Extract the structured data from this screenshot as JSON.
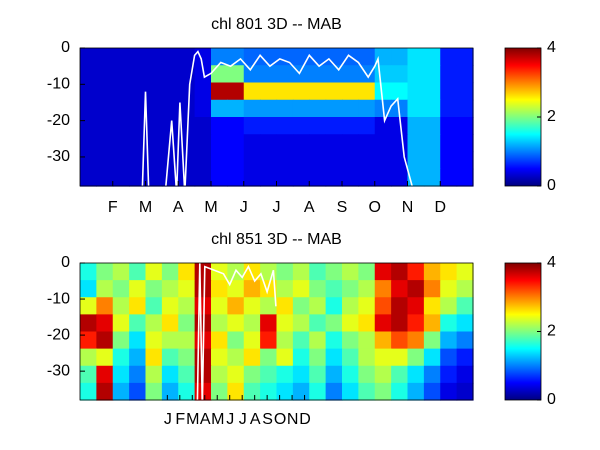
{
  "chart_data": [
    {
      "type": "heatmap",
      "title": "chl  801 3D   -- MAB",
      "colormap": "jet",
      "xlim": [
        0,
        12
      ],
      "xticks": [
        {
          "value": 1,
          "label": "F"
        },
        {
          "value": 2,
          "label": "M"
        },
        {
          "value": 3,
          "label": "A"
        },
        {
          "value": 4,
          "label": "M"
        },
        {
          "value": 5,
          "label": "J"
        },
        {
          "value": 6,
          "label": "J"
        },
        {
          "value": 7,
          "label": "A"
        },
        {
          "value": 8,
          "label": "S"
        },
        {
          "value": 9,
          "label": "O"
        },
        {
          "value": 10,
          "label": "N"
        },
        {
          "value": 11,
          "label": "D"
        }
      ],
      "ylim": [
        -38,
        0
      ],
      "yticks": [
        0,
        -10,
        -20,
        -30
      ],
      "clim": [
        0,
        4
      ],
      "cticks": [
        0,
        2,
        4
      ],
      "z": [
        [
          0.3,
          0.3,
          0.3,
          0.3,
          0.3,
          0.3,
          0.3,
          0.4,
          1.0,
          1.0,
          0.9,
          0.9,
          0.9,
          0.9,
          0.9,
          0.9,
          0.9,
          0.9,
          1.2,
          1.2,
          1.4,
          1.4,
          0.6,
          0.6
        ],
        [
          0.3,
          0.3,
          0.3,
          0.3,
          0.3,
          0.3,
          0.3,
          0.4,
          2.0,
          2.0,
          1.0,
          1.0,
          1.0,
          1.0,
          1.0,
          1.0,
          1.0,
          1.0,
          1.3,
          1.3,
          1.4,
          1.4,
          0.6,
          0.6
        ],
        [
          0.3,
          0.3,
          0.3,
          0.3,
          0.3,
          0.3,
          0.3,
          0.4,
          3.8,
          3.8,
          2.6,
          2.6,
          2.6,
          2.6,
          2.6,
          2.6,
          2.6,
          2.6,
          1.5,
          1.5,
          1.4,
          1.4,
          0.6,
          0.6
        ],
        [
          0.3,
          0.3,
          0.3,
          0.3,
          0.3,
          0.3,
          0.3,
          0.4,
          1.2,
          1.2,
          1.1,
          1.1,
          1.1,
          1.1,
          1.1,
          1.1,
          1.1,
          1.1,
          1.0,
          1.0,
          1.4,
          1.4,
          0.6,
          0.6
        ],
        [
          0.3,
          0.3,
          0.3,
          0.3,
          0.3,
          0.3,
          0.3,
          0.3,
          0.5,
          0.5,
          0.6,
          0.6,
          0.6,
          0.6,
          0.6,
          0.6,
          0.6,
          0.6,
          0.4,
          0.4,
          1.2,
          1.2,
          0.5,
          0.5
        ],
        [
          0.3,
          0.3,
          0.3,
          0.3,
          0.3,
          0.3,
          0.3,
          0.3,
          0.5,
          0.5,
          0.4,
          0.4,
          0.4,
          0.4,
          0.4,
          0.4,
          0.4,
          0.4,
          0.4,
          0.4,
          1.2,
          1.2,
          0.5,
          0.5
        ],
        [
          0.3,
          0.3,
          0.3,
          0.3,
          0.3,
          0.3,
          0.3,
          0.3,
          0.5,
          0.5,
          0.4,
          0.4,
          0.4,
          0.4,
          0.4,
          0.4,
          0.4,
          0.4,
          0.4,
          0.4,
          1.2,
          1.2,
          0.5,
          0.5
        ],
        [
          0.3,
          0.3,
          0.3,
          0.3,
          0.3,
          0.3,
          0.3,
          0.3,
          0.5,
          0.5,
          0.4,
          0.4,
          0.4,
          0.4,
          0.4,
          0.4,
          0.4,
          0.4,
          0.4,
          0.4,
          1.2,
          1.2,
          0.5,
          0.5
        ]
      ],
      "line": {
        "color": "#ffffff",
        "x": [
          1.9,
          2.0,
          2.1,
          2.25,
          2.4,
          2.6,
          2.8,
          2.95,
          3.05,
          3.2,
          3.35,
          3.5,
          3.6,
          3.7,
          3.8,
          4.0,
          4.3,
          4.6,
          4.9,
          5.2,
          5.5,
          5.8,
          6.1,
          6.4,
          6.7,
          7.0,
          7.3,
          7.6,
          7.9,
          8.2,
          8.5,
          8.8,
          9.0,
          9.1,
          9.3,
          9.5,
          9.7,
          9.9,
          10.2
        ],
        "values": [
          -40,
          -12,
          -40,
          -40,
          -40,
          -40,
          -20,
          -40,
          -15,
          -40,
          -10,
          -2,
          -1,
          -3,
          -8,
          -7,
          -4,
          -5,
          -3,
          -6,
          -2,
          -5,
          -3,
          -4,
          -7,
          -2,
          -5,
          -3,
          -6,
          -2,
          -4,
          -8,
          -5,
          -3,
          -20,
          -16,
          -14,
          -30,
          -40
        ]
      }
    },
    {
      "type": "heatmap",
      "title": "chl  851 3D   -- MAB",
      "colormap": "jet",
      "xlim": [
        0,
        31.5
      ],
      "xticks": [
        {
          "value": 7,
          "label": "J"
        },
        {
          "value": 8,
          "label": "F"
        },
        {
          "value": 9,
          "label": "M"
        },
        {
          "value": 10,
          "label": "A"
        },
        {
          "value": 11,
          "label": "M"
        },
        {
          "value": 12,
          "label": "J"
        },
        {
          "value": 13,
          "label": "J"
        },
        {
          "value": 14,
          "label": "A"
        },
        {
          "value": 15,
          "label": "S"
        },
        {
          "value": 16,
          "label": "O"
        },
        {
          "value": 17,
          "label": "N"
        },
        {
          "value": 18,
          "label": "D"
        }
      ],
      "ylim": [
        -38,
        0
      ],
      "yticks": [
        0,
        -10,
        -20,
        -30
      ],
      "clim": [
        0,
        4
      ],
      "cticks": [
        0,
        2,
        4
      ],
      "z": [
        [
          1.6,
          2.0,
          2.2,
          1.8,
          2.4,
          2.0,
          2.6,
          3.8,
          2.4,
          2.2,
          2.6,
          2.2,
          2.0,
          2.2,
          1.8,
          2.0,
          2.2,
          2.0,
          3.6,
          3.8,
          3.4,
          2.8,
          2.6,
          2.4
        ],
        [
          1.4,
          2.2,
          2.0,
          2.4,
          2.0,
          2.2,
          2.4,
          3.8,
          2.6,
          2.4,
          2.8,
          2.6,
          2.2,
          2.4,
          2.0,
          1.8,
          2.0,
          2.2,
          3.0,
          3.6,
          3.8,
          3.0,
          2.4,
          2.2
        ],
        [
          2.4,
          3.0,
          2.2,
          2.6,
          1.8,
          2.4,
          2.2,
          3.6,
          2.4,
          2.8,
          2.4,
          2.2,
          2.6,
          2.0,
          2.2,
          1.6,
          2.2,
          2.4,
          3.2,
          3.8,
          3.6,
          2.6,
          2.2,
          1.8
        ],
        [
          3.8,
          3.6,
          2.4,
          1.8,
          2.2,
          2.6,
          2.0,
          3.8,
          2.2,
          2.4,
          2.2,
          3.6,
          2.4,
          2.2,
          1.8,
          2.0,
          2.4,
          2.6,
          3.6,
          3.8,
          3.4,
          2.8,
          1.6,
          1.4
        ],
        [
          3.4,
          3.8,
          2.0,
          1.4,
          2.4,
          2.2,
          2.2,
          3.6,
          2.6,
          2.0,
          2.4,
          3.4,
          2.2,
          1.8,
          2.2,
          1.6,
          2.0,
          2.2,
          2.8,
          3.2,
          3.0,
          2.0,
          1.2,
          1.0
        ],
        [
          2.2,
          2.4,
          1.6,
          1.2,
          2.6,
          1.8,
          2.0,
          3.8,
          2.4,
          2.2,
          2.6,
          2.0,
          2.4,
          1.6,
          2.0,
          1.4,
          1.8,
          2.2,
          2.4,
          2.4,
          2.0,
          1.4,
          0.8,
          0.6
        ],
        [
          1.8,
          3.6,
          1.4,
          1.0,
          2.2,
          1.4,
          1.8,
          3.8,
          2.2,
          2.4,
          2.0,
          1.8,
          1.6,
          1.4,
          1.8,
          1.2,
          1.6,
          2.0,
          2.2,
          1.8,
          1.4,
          1.0,
          0.6,
          0.4
        ],
        [
          1.6,
          3.8,
          1.2,
          0.8,
          2.0,
          1.2,
          1.6,
          3.6,
          2.0,
          2.6,
          1.8,
          1.6,
          1.4,
          1.2,
          1.6,
          1.0,
          1.4,
          1.8,
          2.0,
          1.6,
          1.2,
          0.8,
          0.4,
          0.3
        ]
      ],
      "line": {
        "color": "#ffffff",
        "x": [
          9.4,
          9.6,
          9.8,
          10.0,
          11.5,
          12.0,
          12.5,
          13.0,
          13.5,
          14.0,
          14.5,
          15.0,
          15.5,
          15.7
        ],
        "values": [
          -40,
          0,
          -40,
          -1,
          -3,
          -6,
          -2,
          -4,
          -1,
          -5,
          -3,
          -8,
          -2,
          -12
        ]
      }
    }
  ]
}
